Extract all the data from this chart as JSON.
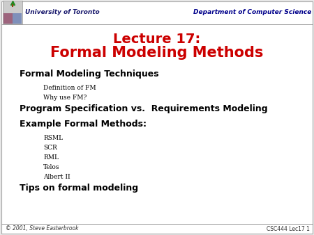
{
  "bg_color": "#e8e8e8",
  "slide_bg": "#ffffff",
  "border_color": "#aaaaaa",
  "header_line_color": "#999999",
  "footer_line_color": "#999999",
  "uoft_color": "#1a1a6e",
  "dept_color": "#00008b",
  "title_color": "#cc0000",
  "title_line1": "Lecture 17:",
  "title_line2": "Formal Modeling Methods",
  "header_left": "University of Toronto",
  "header_right": "Department of Computer Science",
  "footer_left": "© 2001, Steve Easterbrook",
  "footer_right": "CSC444 Lec17 1",
  "body_items": [
    {
      "text": "Formal Modeling Techniques",
      "level": 0
    },
    {
      "text": "Definition of FM",
      "level": 1
    },
    {
      "text": "Why use FM?",
      "level": 1
    },
    {
      "text": "Program Specification vs.  Requirements Modeling",
      "level": 0
    },
    {
      "text": "Example Formal Methods:",
      "level": 0
    },
    {
      "text": "RSML",
      "level": 1
    },
    {
      "text": "SCR",
      "level": 1
    },
    {
      "text": "RML",
      "level": 1
    },
    {
      "text": "Telos",
      "level": 1
    },
    {
      "text": "Albert II",
      "level": 1
    },
    {
      "text": "Tips on formal modeling",
      "level": 0
    }
  ],
  "title_fontsize": 14,
  "header_fontsize": 6.5,
  "body_fontsize_l0": 9.0,
  "body_fontsize_l1": 6.5,
  "footer_fontsize": 5.5,
  "logo_placeholder_color": "#cccccc"
}
